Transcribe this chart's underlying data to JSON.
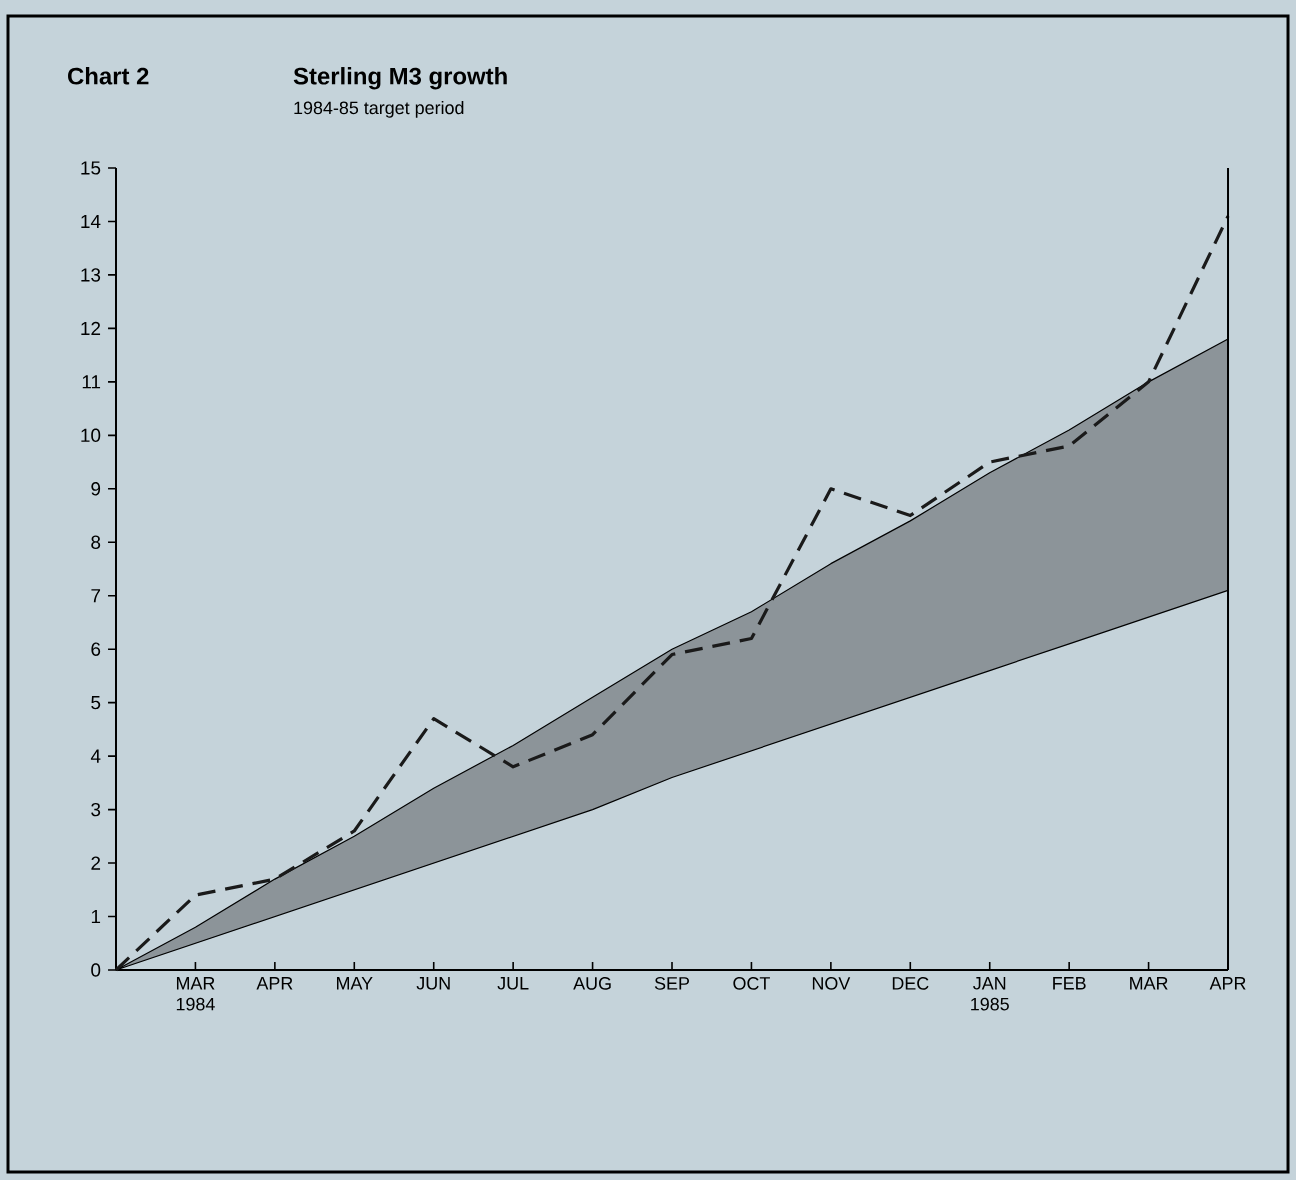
{
  "chart_data": {
    "type": "line",
    "title": "Sterling M3 growth",
    "subtitle": "1984-85 target period",
    "annotations": [
      "Chart 2"
    ],
    "categories": [
      null,
      "MAR 1984",
      "APR",
      "MAY",
      "JUN",
      "JUL",
      "AUG",
      "SEP",
      "OCT",
      "NOV",
      "DEC",
      "JAN 1985",
      "FEB",
      "MAR",
      "APR"
    ],
    "series": [
      {
        "color": "#1a1a1a",
        "line_style": "dashed",
        "values": [
          0,
          1.4,
          1.7,
          2.6,
          4.7,
          3.8,
          4.4,
          5.9,
          6.2,
          9.0,
          8.5,
          9.5,
          9.8,
          11.0,
          14.1
        ],
        "lower": [
          0,
          0.5,
          1.0,
          1.5,
          2.0,
          2.5,
          3.0,
          3.6,
          4.1,
          4.6,
          5.1,
          5.6,
          6.1,
          6.6,
          7.1
        ],
        "upper": [
          0,
          0.8,
          1.7,
          2.5,
          3.4,
          4.2,
          5.1,
          6.0,
          6.7,
          7.6,
          8.4,
          9.3,
          10.1,
          11.0,
          11.8
        ]
      }
    ],
    "ylim": [
      0,
      15
    ],
    "yticks": [
      0,
      1,
      2,
      3,
      4,
      5,
      6,
      7,
      8,
      9,
      10,
      11,
      12,
      13,
      14,
      15
    ],
    "marker": "none"
  }
}
